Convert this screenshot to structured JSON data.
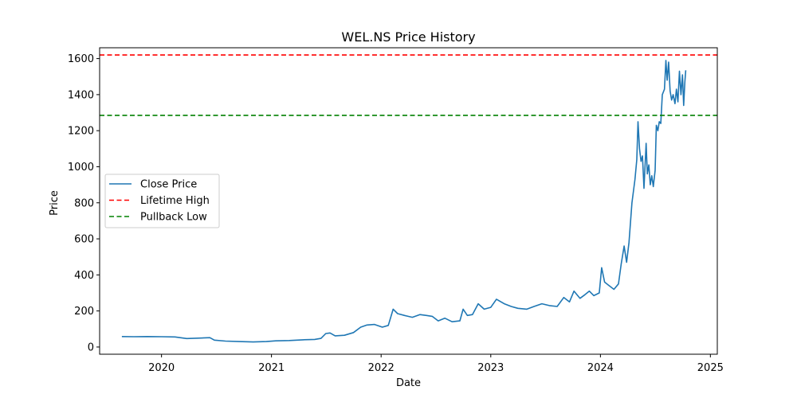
{
  "chart_data": {
    "type": "line",
    "title": "WEL.NS Price History",
    "xlabel": "Date",
    "ylabel": "Price",
    "xlim": [
      "2019-06-09",
      "2025-01-24"
    ],
    "ylim": [
      -40,
      1660
    ],
    "x_ticks": [
      "2020",
      "2021",
      "2022",
      "2023",
      "2024",
      "2025"
    ],
    "y_ticks": [
      0,
      200,
      400,
      600,
      800,
      1000,
      1200,
      1400,
      1600
    ],
    "grid": false,
    "legend_position": "center-left",
    "series": [
      {
        "name": "Close Price",
        "color": "#1f77b4",
        "style": "solid",
        "points": [
          [
            "2019-08-22",
            58
          ],
          [
            "2019-10-01",
            57
          ],
          [
            "2019-11-15",
            58
          ],
          [
            "2020-01-01",
            57
          ],
          [
            "2020-02-15",
            56
          ],
          [
            "2020-03-25",
            47
          ],
          [
            "2020-05-01",
            49
          ],
          [
            "2020-06-10",
            52
          ],
          [
            "2020-06-25",
            38
          ],
          [
            "2020-08-01",
            33
          ],
          [
            "2020-09-15",
            30
          ],
          [
            "2020-11-01",
            28
          ],
          [
            "2020-12-15",
            30
          ],
          [
            "2021-01-15",
            34
          ],
          [
            "2021-03-01",
            36
          ],
          [
            "2021-04-15",
            40
          ],
          [
            "2021-05-25",
            42
          ],
          [
            "2021-06-15",
            48
          ],
          [
            "2021-07-01",
            75
          ],
          [
            "2021-07-15",
            78
          ],
          [
            "2021-08-01",
            62
          ],
          [
            "2021-09-01",
            65
          ],
          [
            "2021-10-01",
            80
          ],
          [
            "2021-10-25",
            110
          ],
          [
            "2021-11-15",
            122
          ],
          [
            "2021-12-10",
            125
          ],
          [
            "2022-01-05",
            110
          ],
          [
            "2022-01-25",
            120
          ],
          [
            "2022-02-10",
            210
          ],
          [
            "2022-02-25",
            185
          ],
          [
            "2022-03-20",
            175
          ],
          [
            "2022-04-15",
            165
          ],
          [
            "2022-05-10",
            180
          ],
          [
            "2022-06-01",
            175
          ],
          [
            "2022-06-20",
            170
          ],
          [
            "2022-07-10",
            145
          ],
          [
            "2022-08-01",
            160
          ],
          [
            "2022-08-25",
            140
          ],
          [
            "2022-09-20",
            145
          ],
          [
            "2022-10-01",
            210
          ],
          [
            "2022-10-15",
            175
          ],
          [
            "2022-11-01",
            180
          ],
          [
            "2022-11-20",
            240
          ],
          [
            "2022-12-10",
            210
          ],
          [
            "2023-01-01",
            220
          ],
          [
            "2023-01-20",
            265
          ],
          [
            "2023-02-15",
            240
          ],
          [
            "2023-03-10",
            225
          ],
          [
            "2023-04-01",
            215
          ],
          [
            "2023-05-01",
            210
          ],
          [
            "2023-05-25",
            225
          ],
          [
            "2023-06-20",
            240
          ],
          [
            "2023-07-15",
            230
          ],
          [
            "2023-08-10",
            225
          ],
          [
            "2023-09-01",
            275
          ],
          [
            "2023-09-20",
            250
          ],
          [
            "2023-10-05",
            310
          ],
          [
            "2023-10-25",
            270
          ],
          [
            "2023-11-10",
            290
          ],
          [
            "2023-11-25",
            310
          ],
          [
            "2023-12-10",
            285
          ],
          [
            "2023-12-28",
            300
          ],
          [
            "2024-01-05",
            440
          ],
          [
            "2024-01-15",
            360
          ],
          [
            "2024-01-30",
            340
          ],
          [
            "2024-02-15",
            320
          ],
          [
            "2024-03-01",
            350
          ],
          [
            "2024-03-10",
            460
          ],
          [
            "2024-03-20",
            560
          ],
          [
            "2024-03-28",
            470
          ],
          [
            "2024-04-05",
            580
          ],
          [
            "2024-04-15",
            800
          ],
          [
            "2024-04-25",
            930
          ],
          [
            "2024-05-01",
            1040
          ],
          [
            "2024-05-05",
            1250
          ],
          [
            "2024-05-10",
            1100
          ],
          [
            "2024-05-15",
            1030
          ],
          [
            "2024-05-20",
            1060
          ],
          [
            "2024-05-25",
            880
          ],
          [
            "2024-06-01",
            1130
          ],
          [
            "2024-06-05",
            960
          ],
          [
            "2024-06-10",
            1010
          ],
          [
            "2024-06-15",
            900
          ],
          [
            "2024-06-20",
            950
          ],
          [
            "2024-06-25",
            890
          ],
          [
            "2024-07-01",
            980
          ],
          [
            "2024-07-05",
            1230
          ],
          [
            "2024-07-10",
            1200
          ],
          [
            "2024-07-15",
            1250
          ],
          [
            "2024-07-20",
            1240
          ],
          [
            "2024-07-25",
            1400
          ],
          [
            "2024-08-01",
            1430
          ],
          [
            "2024-08-06",
            1590
          ],
          [
            "2024-08-10",
            1480
          ],
          [
            "2024-08-15",
            1580
          ],
          [
            "2024-08-20",
            1420
          ],
          [
            "2024-08-25",
            1370
          ],
          [
            "2024-08-30",
            1400
          ],
          [
            "2024-09-05",
            1350
          ],
          [
            "2024-09-10",
            1430
          ],
          [
            "2024-09-15",
            1360
          ],
          [
            "2024-09-20",
            1530
          ],
          [
            "2024-09-25",
            1400
          ],
          [
            "2024-09-30",
            1510
          ],
          [
            "2024-10-04",
            1340
          ],
          [
            "2024-10-08",
            1470
          ],
          [
            "2024-10-11",
            1535
          ]
        ]
      },
      {
        "name": "Lifetime High",
        "color": "#ff0000",
        "style": "dashed",
        "y": 1620
      },
      {
        "name": "Pullback Low",
        "color": "#008000",
        "style": "dashed",
        "y": 1285
      }
    ]
  }
}
